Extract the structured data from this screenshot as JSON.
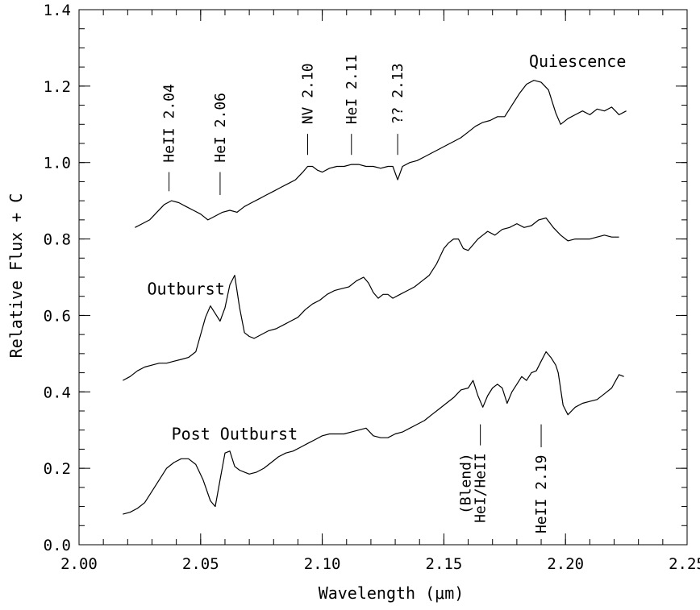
{
  "chart_data": {
    "type": "line",
    "title": "",
    "xlabel": "Wavelength (μm)",
    "ylabel": "Relative Flux + C",
    "xlim": [
      2.0,
      2.25
    ],
    "ylim": [
      0.0,
      1.4
    ],
    "grid": false,
    "legend": "none",
    "x_ticks": [
      "2.00",
      "2.05",
      "2.10",
      "2.15",
      "2.20",
      "2.25"
    ],
    "y_ticks": [
      "0.0",
      "0.2",
      "0.4",
      "0.6",
      "0.8",
      "1.0",
      "1.2",
      "1.4"
    ],
    "series": [
      {
        "name": "Quiescence",
        "x": [
          2.023,
          2.026,
          2.029,
          2.032,
          2.035,
          2.038,
          2.041,
          2.044,
          2.047,
          2.05,
          2.053,
          2.056,
          2.059,
          2.062,
          2.065,
          2.068,
          2.071,
          2.074,
          2.077,
          2.08,
          2.083,
          2.086,
          2.089,
          2.092,
          2.094,
          2.096,
          2.098,
          2.1,
          2.103,
          2.106,
          2.109,
          2.112,
          2.115,
          2.118,
          2.121,
          2.124,
          2.127,
          2.129,
          2.131,
          2.133,
          2.136,
          2.139,
          2.142,
          2.145,
          2.148,
          2.151,
          2.154,
          2.157,
          2.16,
          2.163,
          2.166,
          2.169,
          2.172,
          2.175,
          2.178,
          2.181,
          2.184,
          2.187,
          2.19,
          2.193,
          2.196,
          2.198,
          2.201,
          2.204,
          2.207,
          2.21,
          2.213,
          2.216,
          2.219,
          2.222,
          2.225
        ],
        "y": [
          0.83,
          0.84,
          0.85,
          0.87,
          0.89,
          0.9,
          0.895,
          0.885,
          0.875,
          0.865,
          0.85,
          0.86,
          0.87,
          0.875,
          0.87,
          0.885,
          0.895,
          0.905,
          0.915,
          0.925,
          0.935,
          0.945,
          0.955,
          0.975,
          0.99,
          0.99,
          0.98,
          0.975,
          0.985,
          0.99,
          0.99,
          0.995,
          0.995,
          0.99,
          0.99,
          0.985,
          0.99,
          0.99,
          0.955,
          0.99,
          1.0,
          1.005,
          1.015,
          1.025,
          1.035,
          1.045,
          1.055,
          1.065,
          1.08,
          1.095,
          1.105,
          1.11,
          1.12,
          1.12,
          1.15,
          1.18,
          1.205,
          1.215,
          1.21,
          1.19,
          1.13,
          1.1,
          1.115,
          1.125,
          1.135,
          1.125,
          1.14,
          1.135,
          1.145,
          1.125,
          1.135
        ]
      },
      {
        "name": "Outburst",
        "x": [
          2.018,
          2.021,
          2.024,
          2.027,
          2.03,
          2.033,
          2.036,
          2.039,
          2.042,
          2.045,
          2.048,
          2.05,
          2.052,
          2.054,
          2.056,
          2.058,
          2.06,
          2.062,
          2.064,
          2.066,
          2.068,
          2.07,
          2.072,
          2.075,
          2.078,
          2.081,
          2.084,
          2.087,
          2.09,
          2.093,
          2.096,
          2.099,
          2.102,
          2.105,
          2.108,
          2.111,
          2.114,
          2.117,
          2.119,
          2.121,
          2.123,
          2.125,
          2.127,
          2.129,
          2.132,
          2.135,
          2.138,
          2.141,
          2.144,
          2.147,
          2.15,
          2.152,
          2.154,
          2.156,
          2.158,
          2.16,
          2.162,
          2.164,
          2.166,
          2.168,
          2.171,
          2.174,
          2.177,
          2.18,
          2.183,
          2.186,
          2.189,
          2.192,
          2.195,
          2.198,
          2.201,
          2.204,
          2.207,
          2.21,
          2.213,
          2.216,
          2.219,
          2.222
        ],
        "y": [
          0.43,
          0.44,
          0.455,
          0.465,
          0.47,
          0.475,
          0.475,
          0.48,
          0.485,
          0.49,
          0.505,
          0.55,
          0.595,
          0.625,
          0.605,
          0.585,
          0.62,
          0.68,
          0.705,
          0.62,
          0.555,
          0.545,
          0.54,
          0.55,
          0.56,
          0.565,
          0.575,
          0.585,
          0.595,
          0.615,
          0.63,
          0.64,
          0.655,
          0.665,
          0.67,
          0.675,
          0.69,
          0.7,
          0.685,
          0.66,
          0.645,
          0.655,
          0.655,
          0.645,
          0.655,
          0.665,
          0.675,
          0.69,
          0.705,
          0.735,
          0.775,
          0.79,
          0.8,
          0.8,
          0.775,
          0.77,
          0.785,
          0.8,
          0.81,
          0.82,
          0.81,
          0.825,
          0.83,
          0.84,
          0.83,
          0.835,
          0.85,
          0.855,
          0.83,
          0.81,
          0.795,
          0.8,
          0.8,
          0.8,
          0.805,
          0.81,
          0.805,
          0.805
        ]
      },
      {
        "name": "Post Outburst",
        "x": [
          2.018,
          2.021,
          2.024,
          2.027,
          2.03,
          2.033,
          2.036,
          2.039,
          2.042,
          2.045,
          2.048,
          2.051,
          2.054,
          2.056,
          2.058,
          2.06,
          2.062,
          2.064,
          2.066,
          2.068,
          2.07,
          2.073,
          2.076,
          2.079,
          2.082,
          2.085,
          2.088,
          2.091,
          2.094,
          2.097,
          2.1,
          2.103,
          2.106,
          2.109,
          2.112,
          2.115,
          2.118,
          2.121,
          2.124,
          2.127,
          2.13,
          2.133,
          2.136,
          2.139,
          2.142,
          2.145,
          2.148,
          2.151,
          2.154,
          2.157,
          2.16,
          2.162,
          2.164,
          2.166,
          2.168,
          2.17,
          2.172,
          2.174,
          2.176,
          2.178,
          2.18,
          2.182,
          2.184,
          2.186,
          2.188,
          2.19,
          2.192,
          2.194,
          2.196,
          2.197,
          2.199,
          2.201,
          2.204,
          2.207,
          2.21,
          2.213,
          2.216,
          2.219,
          2.222,
          2.224
        ],
        "y": [
          0.08,
          0.085,
          0.095,
          0.11,
          0.14,
          0.17,
          0.2,
          0.215,
          0.225,
          0.225,
          0.21,
          0.17,
          0.115,
          0.1,
          0.17,
          0.24,
          0.245,
          0.205,
          0.195,
          0.19,
          0.185,
          0.19,
          0.2,
          0.215,
          0.23,
          0.24,
          0.245,
          0.255,
          0.265,
          0.275,
          0.285,
          0.29,
          0.29,
          0.29,
          0.295,
          0.3,
          0.305,
          0.285,
          0.28,
          0.28,
          0.29,
          0.295,
          0.305,
          0.315,
          0.325,
          0.34,
          0.355,
          0.37,
          0.385,
          0.405,
          0.41,
          0.43,
          0.39,
          0.36,
          0.39,
          0.41,
          0.42,
          0.41,
          0.37,
          0.4,
          0.42,
          0.44,
          0.43,
          0.45,
          0.455,
          0.48,
          0.505,
          0.49,
          0.47,
          0.45,
          0.365,
          0.34,
          0.36,
          0.37,
          0.375,
          0.38,
          0.395,
          0.41,
          0.445,
          0.44
        ]
      }
    ],
    "series_labels": [
      {
        "text": "Quiescence",
        "x": 2.185,
        "y": 1.25
      },
      {
        "text": "Outburst",
        "x": 2.028,
        "y": 0.655
      },
      {
        "text": "Post Outburst",
        "x": 2.038,
        "y": 0.275
      }
    ],
    "line_markers": [
      {
        "text": "HeII 2.04",
        "x": 2.037,
        "tick_y": [
          0.925,
          0.975
        ],
        "text_y": 1.0,
        "text_side": "above"
      },
      {
        "text": "HeI 2.06",
        "x": 2.058,
        "tick_y": [
          0.915,
          0.975
        ],
        "text_y": 1.0,
        "text_side": "above"
      },
      {
        "text": "NV 2.10",
        "x": 2.094,
        "tick_y": [
          1.02,
          1.075
        ],
        "text_y": 1.1,
        "text_side": "above"
      },
      {
        "text": "HeI 2.11",
        "x": 2.112,
        "tick_y": [
          1.02,
          1.075
        ],
        "text_y": 1.1,
        "text_side": "above"
      },
      {
        "text": "?? 2.13",
        "x": 2.131,
        "tick_y": [
          1.02,
          1.075
        ],
        "text_y": 1.1,
        "text_side": "above"
      },
      {
        "text": "HeI/HeII",
        "x": 2.165,
        "tick_y": [
          0.315,
          0.26
        ],
        "text_y": 0.24,
        "text_side": "below"
      },
      {
        "text": "(Blend)",
        "x": 2.159,
        "tick_y": null,
        "text_y": 0.24,
        "text_side": "below"
      },
      {
        "text": "HeII 2.19",
        "x": 2.19,
        "tick_y": [
          0.315,
          0.255
        ],
        "text_y": 0.235,
        "text_side": "below"
      }
    ]
  }
}
